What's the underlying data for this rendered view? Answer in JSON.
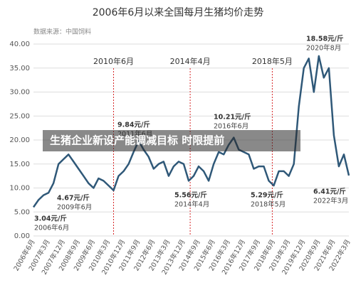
{
  "chart_data": {
    "type": "line",
    "title": "2006年6月以来全国每月生猪均价走势",
    "subtitle": "数据来源：中国饲料",
    "headline": "生猪企业新设产能调减目标 时限提前",
    "color": "#2f5878",
    "grid": true,
    "ylim": [
      0,
      40
    ],
    "yticks": [
      {
        "value": 0,
        "label": "0.00"
      },
      {
        "value": 5,
        "label": "5.00"
      },
      {
        "value": 10,
        "label": "10.00"
      },
      {
        "value": 15,
        "label": "15.00"
      },
      {
        "value": 20,
        "label": "20.00"
      },
      {
        "value": 25,
        "label": "25.00"
      },
      {
        "value": 30,
        "label": "30.00"
      },
      {
        "value": 35,
        "label": "35.00"
      },
      {
        "value": 40,
        "label": "40.00"
      }
    ],
    "categories": [
      "2006年6月",
      null,
      null,
      "2007年3月",
      null,
      null,
      "2007年12月",
      null,
      null,
      "2008年9月",
      null,
      null,
      "2009年6月",
      null,
      null,
      "2010年3月",
      null,
      null,
      "2010年12月",
      null,
      null,
      "2011年9月",
      null,
      null,
      "2012年6月",
      null,
      null,
      "2013年3月",
      null,
      null,
      "2013年12月",
      null,
      null,
      "2014年9月",
      null,
      null,
      "2015年6月",
      null,
      null,
      "2016年3月",
      null,
      null,
      "2016年12月",
      null,
      null,
      "2017年9月",
      null,
      null,
      "2018年6月",
      null,
      null,
      "2019年3月",
      null,
      null,
      "2019年12月",
      null,
      null,
      "2020年9月",
      null,
      null,
      "2021年6月",
      null,
      null,
      "2022年3月"
    ],
    "values": [
      6.0,
      7.5,
      8.5,
      9.0,
      11.0,
      15.0,
      16.0,
      17.0,
      15.5,
      14.0,
      12.5,
      11.0,
      10.0,
      12.0,
      11.5,
      10.5,
      9.5,
      12.5,
      13.5,
      15.0,
      17.5,
      19.8,
      18.0,
      16.5,
      14.0,
      15.0,
      15.5,
      12.5,
      14.5,
      15.5,
      15.0,
      11.5,
      12.5,
      14.5,
      13.5,
      11.5,
      15.0,
      17.5,
      17.0,
      19.0,
      20.5,
      18.0,
      17.5,
      17.0,
      14.0,
      14.5,
      14.5,
      11.5,
      10.5,
      13.5,
      13.5,
      12.5,
      15.0,
      27.0,
      35.0,
      37.0,
      30.0,
      37.5,
      33.0,
      35.0,
      21.0,
      14.5,
      17.0,
      12.6
    ],
    "markers": [
      {
        "label": "2010年6月"
      },
      {
        "label": "2014年4月"
      },
      {
        "label": "2018年5月"
      }
    ],
    "annotations": [
      {
        "price": "3.04元/斤",
        "date": "2006年6月"
      },
      {
        "price": "4.67元/斤",
        "date": "2009年6月"
      },
      {
        "price": "9.84元/斤",
        "date": "2011年6月"
      },
      {
        "price": "5.56元/斤",
        "date": "2014年4月"
      },
      {
        "price": "10.21元/斤",
        "date": "2016年6月"
      },
      {
        "price": "5.29元/斤",
        "date": "2018年5月"
      },
      {
        "price": "18.58元/斤",
        "date": "2020年8月"
      },
      {
        "price": "6.41元/斤",
        "date": "2022年3月"
      }
    ]
  }
}
